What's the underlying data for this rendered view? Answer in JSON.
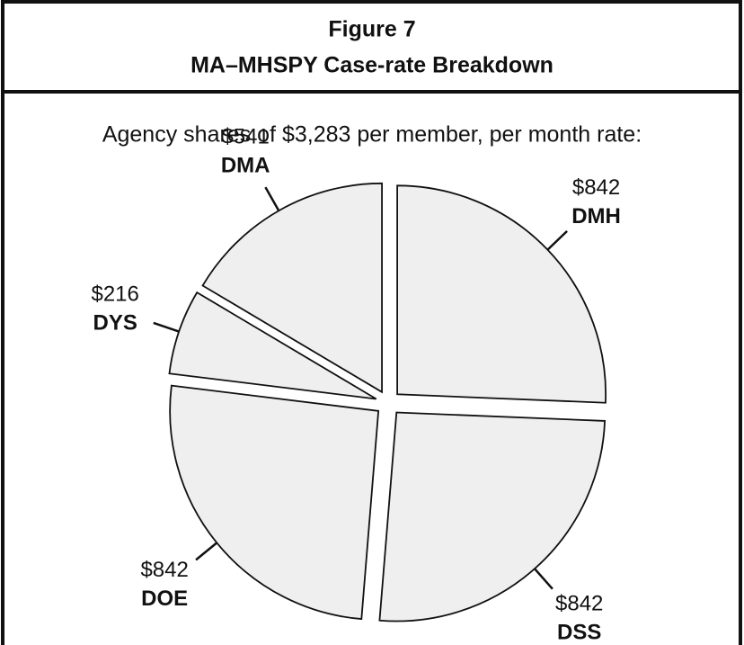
{
  "chart_data": {
    "type": "pie",
    "title": "Figure 7",
    "subtitle": "MA–MHSPY Case-rate Breakdown",
    "annotation": "Agency shares of $3,283 per member, per month rate:",
    "categories": [
      "DMH",
      "DSS",
      "DOE",
      "DYS",
      "DMA"
    ],
    "values": [
      842,
      842,
      842,
      216,
      541
    ],
    "value_labels": [
      "$842",
      "$842",
      "$842",
      "$216",
      "$541"
    ],
    "color": "#efefef"
  }
}
